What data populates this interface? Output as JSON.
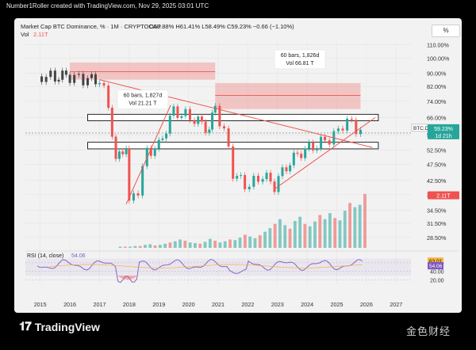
{
  "credit": "Number1Roller created with TradingView.com, Nov 29, 2025 03:01 UTC",
  "header": {
    "title": "Market Cap BTC Dominance, % · 1M · CRYPTOCAP",
    "ohlc": "O59.88%  H61.41%  L58.49%  C59.23%  −0.66 (−1.10%)",
    "vol_label": "Vol",
    "vol_value": "2.11T",
    "pct_button": "%"
  },
  "colors": {
    "up": "#26a69a",
    "down": "#ef5350",
    "rsi": "#7e57c2",
    "rsi_ma": "#f5b342",
    "zone": "#ef5350"
  },
  "chart_data": {
    "type": "candlestick",
    "y_scale": "log",
    "ylim": [
      26.5,
      112
    ],
    "y_ticks": [
      "110.00%",
      "100.00%",
      "90.00%",
      "82.00%",
      "74.00%",
      "66.00%",
      "58.50%",
      "52.50%",
      "47.50%",
      "42.50%",
      "38.50%",
      "34.50%",
      "31.50%",
      "28.50%"
    ],
    "x_ticks": [
      "2015",
      "2016",
      "2017",
      "2018",
      "2019",
      "2020",
      "2021",
      "2022",
      "2023",
      "2024",
      "2025",
      "2026",
      "2027"
    ],
    "yearly_close": [
      {
        "t": 2014.9,
        "close": 88
      },
      {
        "t": 2015.5,
        "close": 88
      },
      {
        "t": 2016.0,
        "close": 88
      },
      {
        "t": 2016.6,
        "close": 86
      },
      {
        "t": 2017.0,
        "close": 86
      },
      {
        "t": 2017.3,
        "close": 72
      },
      {
        "t": 2017.55,
        "close": 48
      },
      {
        "t": 2017.9,
        "close": 55
      },
      {
        "t": 2018.0,
        "close": 36
      },
      {
        "t": 2018.3,
        "close": 40
      },
      {
        "t": 2018.6,
        "close": 52
      },
      {
        "t": 2019.0,
        "close": 54
      },
      {
        "t": 2019.5,
        "close": 69
      },
      {
        "t": 2019.9,
        "close": 67
      },
      {
        "t": 2020.2,
        "close": 65
      },
      {
        "t": 2020.7,
        "close": 61
      },
      {
        "t": 2020.9,
        "close": 70
      },
      {
        "t": 2021.2,
        "close": 60
      },
      {
        "t": 2021.5,
        "close": 45
      },
      {
        "t": 2021.9,
        "close": 41
      },
      {
        "t": 2022.2,
        "close": 42
      },
      {
        "t": 2022.5,
        "close": 44
      },
      {
        "t": 2022.9,
        "close": 41
      },
      {
        "t": 2023.3,
        "close": 47
      },
      {
        "t": 2023.8,
        "close": 52
      },
      {
        "t": 2024.2,
        "close": 54
      },
      {
        "t": 2024.6,
        "close": 56
      },
      {
        "t": 2024.9,
        "close": 58
      },
      {
        "t": 2025.2,
        "close": 63
      },
      {
        "t": 2025.5,
        "close": 64
      },
      {
        "t": 2025.8,
        "close": 59
      }
    ],
    "volume_relative": [
      2,
      2,
      2,
      3,
      3,
      5,
      6,
      4,
      5,
      7,
      9,
      11,
      14,
      12,
      9,
      8,
      7,
      10,
      15,
      12,
      9,
      11,
      14,
      13,
      17,
      22,
      19,
      16,
      21,
      27,
      33,
      40,
      48,
      38,
      32,
      45,
      52,
      40,
      36,
      44,
      55,
      48,
      58,
      50,
      46,
      62,
      75,
      68,
      72,
      90
    ],
    "annotations": [
      {
        "text": "60 bars, 1,827d",
        "text2": "Vol 21.21 T"
      },
      {
        "text": "60 bars, 1,826d",
        "text2": "Vol 66.81 T"
      }
    ],
    "last_price_label": "59.23%",
    "symbol_label": "BTC.D",
    "countdown_label": "1d 21h",
    "volume_label": "2.11T",
    "rsi": {
      "label": "RSI (14, close)",
      "value": "54.06",
      "ma_value": "63.01",
      "levels": [
        "60.00",
        "40.00",
        "20.00"
      ]
    }
  },
  "footer": {
    "brand": "TradingView",
    "watermark": "金色财经"
  }
}
